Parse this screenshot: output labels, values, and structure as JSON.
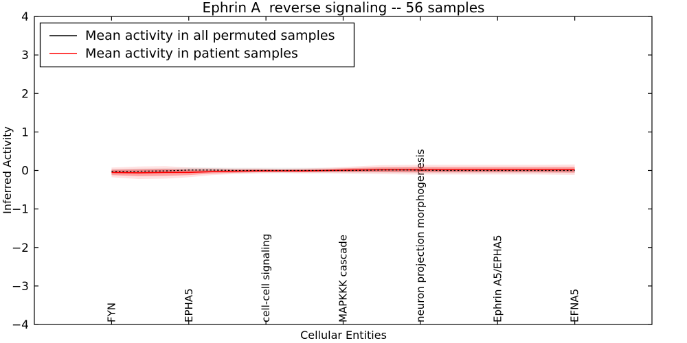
{
  "figure": {
    "title": "Ephrin A  reverse signaling -- 56 samples",
    "xlabel": "Cellular Entities",
    "ylabel": "Inferred Activity"
  },
  "legend": {
    "entries": [
      {
        "label": "Mean activity in all permuted samples",
        "color": "#000000"
      },
      {
        "label": "Mean activity in patient samples",
        "color": "#ff0000"
      }
    ]
  },
  "chart_data": {
    "type": "line",
    "title": "Ephrin A  reverse signaling -- 56 samples",
    "xlabel": "Cellular Entities",
    "ylabel": "Inferred Activity",
    "ylim": [
      -4,
      4
    ],
    "xlim": [
      -1,
      7
    ],
    "grid": false,
    "legend_position": "upper left",
    "yticks": [
      "4",
      "3",
      "2",
      "1",
      "0",
      "−1",
      "−2",
      "−3",
      "−4"
    ],
    "categories": [
      "FYN",
      "EPHA5",
      "cell-cell signaling",
      "MAPKKK cascade",
      "neuron projection morphogenesis",
      "Ephrin A5/EPHA5",
      "EFNA5"
    ],
    "category_x": [
      0,
      1,
      2,
      3,
      4,
      5,
      6
    ],
    "series": [
      {
        "name": "Mean activity in all permuted samples",
        "color": "#000000",
        "style": "dashed",
        "band_color": "rgba(150,150,150,0.30)",
        "band_color_outer": "rgba(150,150,150,0.12)",
        "x": [
          0,
          0.35,
          0.7,
          1.0,
          1.3,
          1.6,
          1.9,
          2.2,
          2.5,
          2.8,
          3.1,
          3.5,
          3.9,
          4.3,
          4.7,
          5.1,
          5.5,
          6.0
        ],
        "values": [
          -0.03,
          -0.02,
          -0.01,
          0.01,
          0.01,
          0.0,
          0.0,
          0.0,
          0.0,
          0.0,
          0.0,
          0.01,
          0.01,
          0.0,
          0.0,
          0.0,
          0.0,
          0.0
        ],
        "band_halfwidth": [
          0.04,
          0.04,
          0.04,
          0.04,
          0.04,
          0.04,
          0.04,
          0.04,
          0.04,
          0.04,
          0.04,
          0.04,
          0.04,
          0.04,
          0.04,
          0.04,
          0.04,
          0.04
        ]
      },
      {
        "name": "Mean activity in patient samples",
        "color": "#ff0000",
        "style": "solid",
        "band_color": "rgba(255,30,30,0.32)",
        "band_color_outer": "rgba(255,60,60,0.15)",
        "x": [
          0,
          0.35,
          0.7,
          1.0,
          1.3,
          1.6,
          1.9,
          2.2,
          2.5,
          2.8,
          3.1,
          3.5,
          3.9,
          4.3,
          4.7,
          5.1,
          5.5,
          6.0
        ],
        "values": [
          -0.05,
          -0.06,
          -0.05,
          -0.05,
          -0.03,
          -0.02,
          -0.01,
          -0.01,
          -0.01,
          0.0,
          0.01,
          0.02,
          0.02,
          0.02,
          0.02,
          0.02,
          0.02,
          0.02
        ],
        "band_halfwidth": [
          0.07,
          0.09,
          0.09,
          0.07,
          0.05,
          0.04,
          0.035,
          0.03,
          0.035,
          0.04,
          0.05,
          0.065,
          0.07,
          0.07,
          0.07,
          0.07,
          0.07,
          0.075
        ]
      }
    ]
  }
}
